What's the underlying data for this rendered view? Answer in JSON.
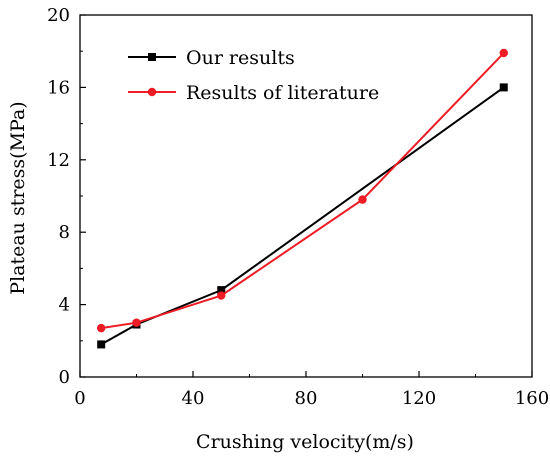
{
  "chart_data": {
    "type": "line",
    "title": "",
    "xlabel": "Crushing velocity(m/s)",
    "ylabel": "Plateau stress(MPa)",
    "xlim": [
      0,
      160
    ],
    "ylim": [
      0,
      20
    ],
    "xticks": [
      0,
      40,
      80,
      120,
      160
    ],
    "yticks": [
      0,
      4,
      8,
      12,
      16,
      20
    ],
    "grid": false,
    "legend_position": "top-left",
    "series": [
      {
        "name": "Our results",
        "color": "#000000",
        "marker": "square",
        "points": [
          {
            "x": 7.5,
            "y": 1.8
          },
          {
            "x": 20,
            "y": 2.9
          },
          {
            "x": 50,
            "y": 4.8
          },
          {
            "x": 150,
            "y": 16.0
          }
        ]
      },
      {
        "name": "Results of literature",
        "color": "#ee1c25",
        "marker": "circle",
        "points": [
          {
            "x": 7.5,
            "y": 2.7
          },
          {
            "x": 20,
            "y": 3.0
          },
          {
            "x": 50,
            "y": 4.5
          },
          {
            "x": 100,
            "y": 9.8
          },
          {
            "x": 150,
            "y": 17.9
          }
        ]
      }
    ]
  }
}
